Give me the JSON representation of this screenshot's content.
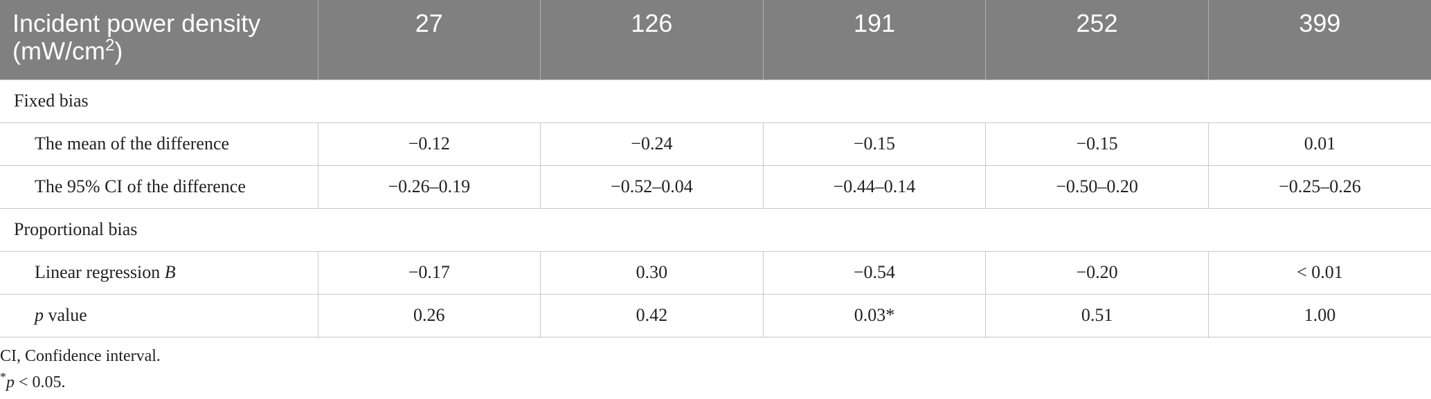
{
  "table": {
    "header": {
      "label": [
        "Incident power density (mW/cm",
        "2",
        ")"
      ],
      "columns": [
        27,
        126,
        191,
        252,
        399
      ]
    },
    "sections": [
      {
        "title": "Fixed bias",
        "rows": [
          {
            "label": [
              {
                "text": "The mean of the difference",
                "italic": false
              }
            ],
            "cells": [
              "−0.12",
              "−0.24",
              "−0.15",
              "−0.15",
              "0.01"
            ]
          },
          {
            "label": [
              {
                "text": "The 95% CI of the difference",
                "italic": false
              }
            ],
            "cells": [
              "−0.26–0.19",
              "−0.52–0.04",
              "−0.44–0.14",
              "−0.50–0.20",
              "−0.25–0.26"
            ]
          }
        ]
      },
      {
        "title": "Proportional bias",
        "rows": [
          {
            "label": [
              {
                "text": "Linear regression ",
                "italic": false
              },
              {
                "text": "B",
                "italic": true
              }
            ],
            "cells": [
              "−0.17",
              "0.30",
              "−0.54",
              "−0.20",
              "< 0.01"
            ]
          },
          {
            "label": [
              {
                "text": "p",
                "italic": true
              },
              {
                "text": " value",
                "italic": false
              }
            ],
            "cells": [
              "0.26",
              "0.42",
              "0.03*",
              "0.51",
              "1.00"
            ]
          }
        ]
      }
    ],
    "footnotes": [
      [
        {
          "text": "CI, Confidence interval.",
          "style": "normal"
        }
      ],
      [
        {
          "text": "*",
          "style": "sup"
        },
        {
          "text": "p",
          "style": "italic"
        },
        {
          "text": " < 0.05.",
          "style": "normal"
        }
      ]
    ]
  }
}
